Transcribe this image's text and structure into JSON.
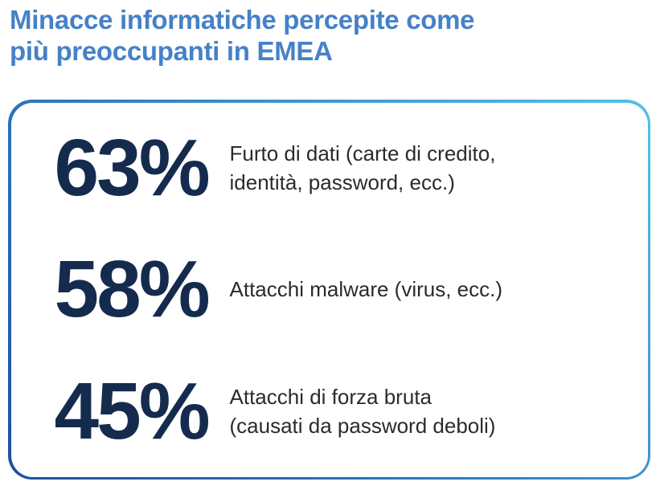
{
  "page": {
    "title_line1": "Minacce informatiche percepite come",
    "title_line2": "più preoccupanti in EMEA"
  },
  "stats": [
    {
      "value": "63%",
      "label_line1": "Furto di dati (carte di credito,",
      "label_line2": "identità, password, ecc.)"
    },
    {
      "value": "58%",
      "label_line1": "Attacchi malware (virus, ecc.)",
      "label_line2": ""
    },
    {
      "value": "45%",
      "label_line1": "Attacchi di forza bruta",
      "label_line2": "(causati da password deboli)"
    }
  ],
  "chart_data": {
    "type": "table",
    "title": "Minacce informatiche percepite come più preoccupanti in EMEA",
    "categories": [
      "Furto di dati (carte di credito, identità, password, ecc.)",
      "Attacchi malware (virus, ecc.)",
      "Attacchi di forza bruta (causati da password deboli)"
    ],
    "values": [
      63,
      58,
      45
    ],
    "unit": "%",
    "legend_position": "none",
    "grid": false
  },
  "colors": {
    "title_text": "#4681C8",
    "stat_number": "#152B4E",
    "stat_label": "#2B2B2B",
    "card_border_gradient_start": "#1E4F9D",
    "card_border_gradient_mid": "#2F7CC2",
    "card_border_gradient_end": "#55C1E9",
    "background": "#FFFFFF"
  }
}
